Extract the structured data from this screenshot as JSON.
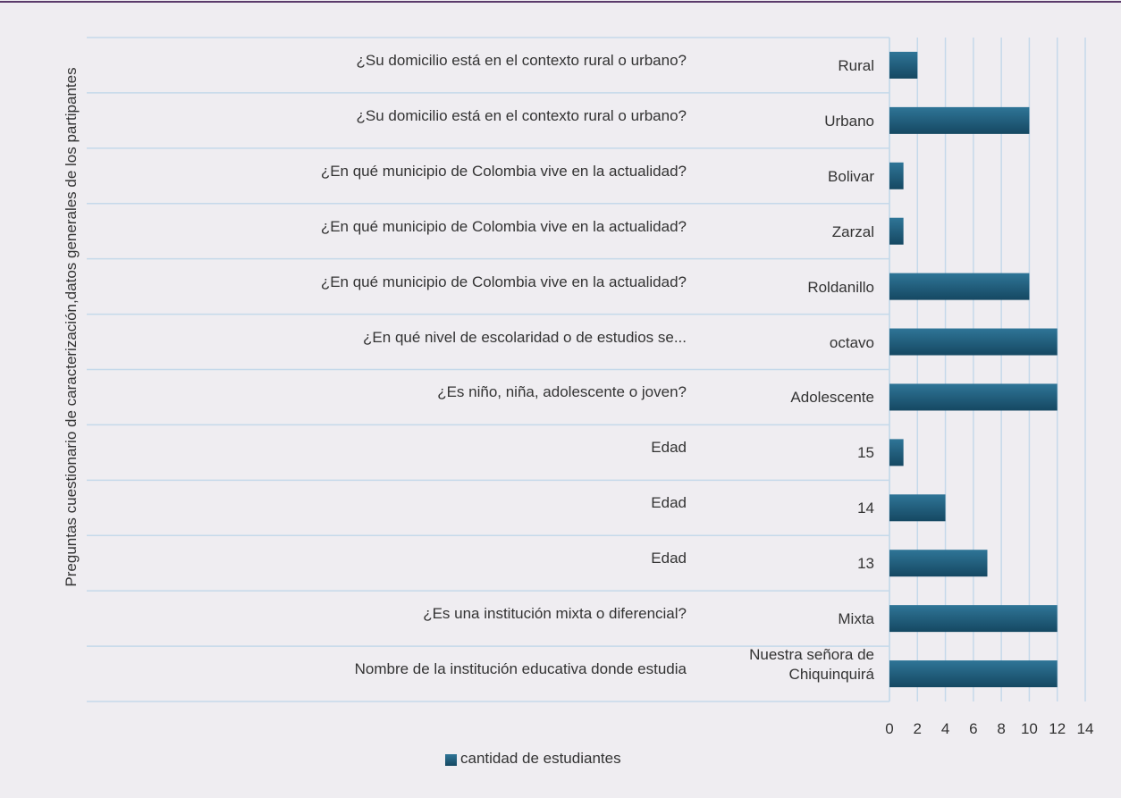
{
  "chart_data": {
    "type": "bar",
    "orientation": "horizontal",
    "ylabel": "Preguntas cuestionario de caracterización,datos generales de los partipantes",
    "groups": [
      "¿Su domicilio está en el contexto rural o urbano?",
      "¿Su domicilio está en el contexto rural o urbano?",
      "¿En qué municipio de Colombia vive en la actualidad?",
      "¿En qué municipio de Colombia vive en la actualidad?",
      "¿En qué municipio de Colombia vive en la actualidad?",
      "¿En qué nivel de escolaridad o de estudios se...",
      "¿Es niño, niña, adolescente o joven?",
      "Edad",
      "Edad",
      "Edad",
      "¿Es una institución mixta o diferencial?",
      "Nombre de la institución educativa donde estudia"
    ],
    "categories": [
      "Rural",
      "Urbano",
      "Bolivar",
      "Zarzal",
      "Roldanillo",
      "octavo",
      "Adolescente",
      "15",
      "14",
      "13",
      "Mixta",
      "Nuestra señora de Chiquinquirá"
    ],
    "series": [
      {
        "name": "cantidad de estudiantes",
        "color": "#1d5b7c",
        "values": [
          2,
          10,
          1,
          1,
          10,
          12,
          12,
          1,
          4,
          7,
          12,
          12
        ]
      }
    ],
    "xlim": [
      0,
      14
    ],
    "xticks": [
      0,
      2,
      4,
      6,
      8,
      10,
      12,
      14
    ],
    "grid": true,
    "legend": "bottom"
  }
}
